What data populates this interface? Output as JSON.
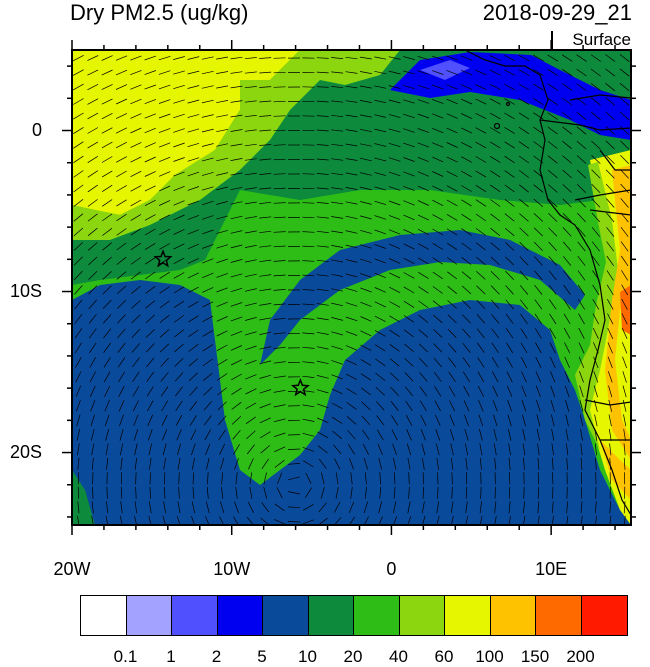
{
  "title": "Dry PM2.5 (ug/kg)",
  "datetime": "2018-09-29_21",
  "level": "Surface",
  "lat_ticks": [
    {
      "label": "0",
      "lat": 0
    },
    {
      "label": "10S",
      "lat": -10
    },
    {
      "label": "20S",
      "lat": -20
    }
  ],
  "lon_ticks": [
    {
      "label": "20W",
      "lon": -20
    },
    {
      "label": "10W",
      "lon": -10
    },
    {
      "label": "0",
      "lon": 0
    },
    {
      "label": "10E",
      "lon": 10
    }
  ],
  "extent": {
    "lon_min": -20,
    "lon_max": 15,
    "lat_min": -24.5,
    "lat_max": 5
  },
  "markers": [
    {
      "name": "star",
      "lon": -14.3,
      "lat": -8.0
    },
    {
      "name": "star",
      "lon": -5.7,
      "lat": -16.0
    }
  ],
  "colorbar": {
    "colors": [
      "#ffffff",
      "#a3a3ff",
      "#5050ff",
      "#0000f0",
      "#0a4a9a",
      "#0d8a3c",
      "#2dbd16",
      "#8bd60f",
      "#e6f500",
      "#ffc200",
      "#ff6a00",
      "#ff1a00"
    ],
    "labels": [
      "0.1",
      "1",
      "2",
      "5",
      "10",
      "20",
      "40",
      "60",
      "100",
      "150",
      "200"
    ]
  },
  "colors": {
    "yellow": "#e6f500",
    "light_green": "#8bd60f",
    "green": "#2dbd16",
    "dark_green": "#0d8a3c",
    "navy": "#0a4a9a",
    "blue": "#0000f0",
    "orange": "#ffc200",
    "red": "#ff6a00"
  }
}
